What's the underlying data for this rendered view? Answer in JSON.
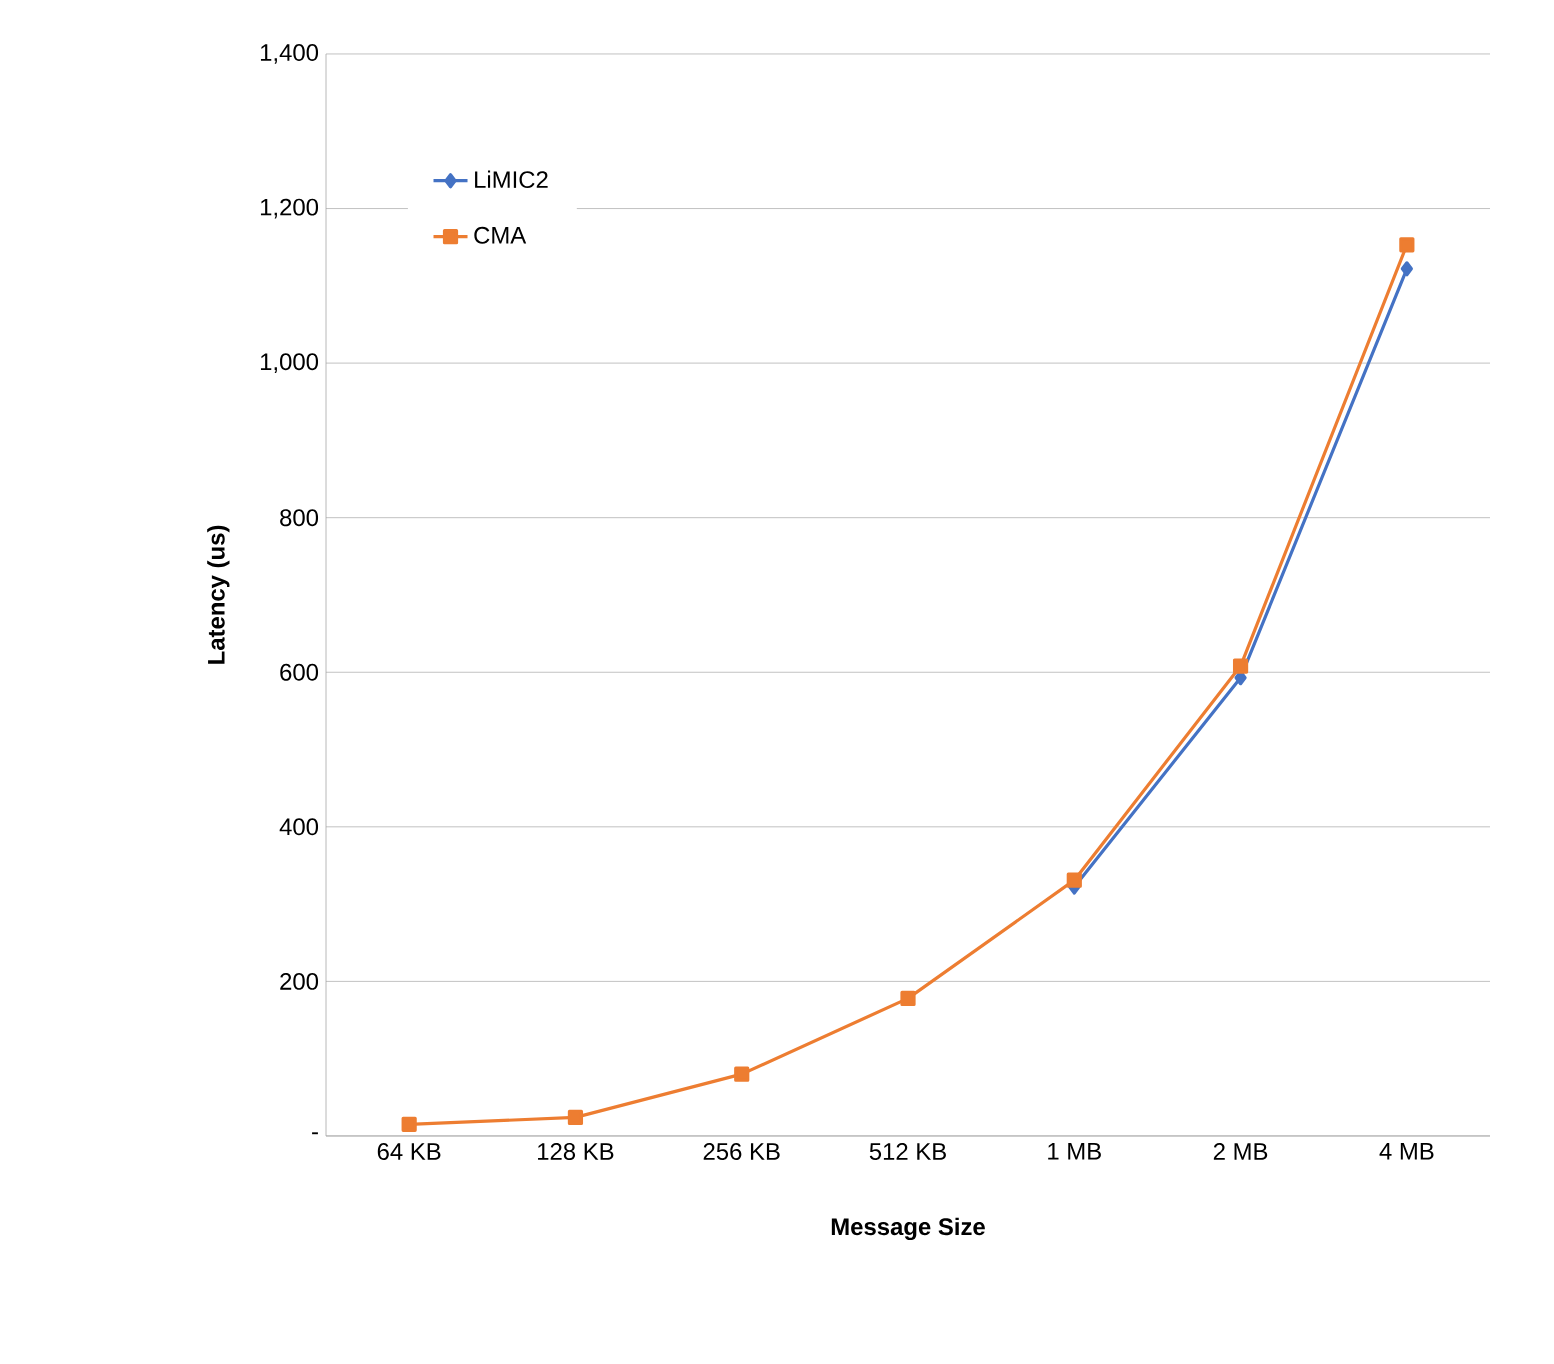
{
  "chart_data": {
    "type": "line",
    "xlabel": "Message Size",
    "ylabel": "Latency (us)",
    "categories": [
      "64 KB",
      "128 KB",
      "256 KB",
      "512 KB",
      "1 MB",
      "2 MB",
      "4 MB"
    ],
    "series": [
      {
        "name": "LiMIC2",
        "color": "#4472c4",
        "marker": "diamond",
        "values": [
          null,
          null,
          null,
          null,
          322,
          593,
          1122
        ]
      },
      {
        "name": "CMA",
        "color": "#ed7d31",
        "marker": "square",
        "values": [
          15,
          24,
          80,
          178,
          331,
          608,
          1153
        ]
      }
    ],
    "ylim": [
      0,
      1400
    ],
    "yticks": [
      {
        "value": 0,
        "label": "-"
      },
      200,
      400,
      600,
      800,
      {
        "value": 1000,
        "label": "1,000"
      },
      {
        "value": 1200,
        "label": "1,200"
      },
      {
        "value": 1400,
        "label": "1,400"
      }
    ],
    "grid": "y",
    "legend": "top left"
  }
}
